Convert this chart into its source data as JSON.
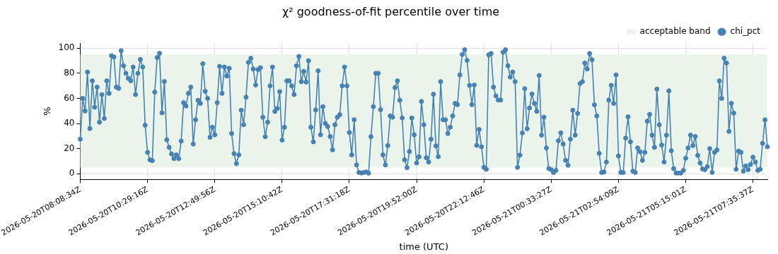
{
  "chart_data": {
    "type": "line",
    "title": "χ² goodness-of-fit percentile over time",
    "xlabel": "time (UTC)",
    "ylabel": "%",
    "categories": [
      "2026-05-20T08:08:34Z",
      null,
      null,
      null,
      null,
      null,
      null,
      null,
      null,
      null,
      null,
      null,
      null,
      null,
      null,
      null,
      null,
      null,
      null,
      null,
      null,
      null,
      null,
      null,
      null,
      null,
      null,
      null,
      "2026-05-20T10:29:16Z",
      null,
      null,
      null,
      null,
      null,
      null,
      null,
      null,
      null,
      null,
      null,
      null,
      null,
      null,
      null,
      null,
      null,
      null,
      null,
      null,
      null,
      null,
      null,
      null,
      null,
      null,
      null,
      "2026-05-20T12:49:56Z",
      null,
      null,
      null,
      null,
      null,
      null,
      null,
      null,
      null,
      null,
      null,
      null,
      null,
      null,
      null,
      null,
      null,
      null,
      null,
      null,
      null,
      null,
      null,
      null,
      null,
      null,
      null,
      "2026-05-20T15:10:42Z",
      null,
      null,
      null,
      null,
      null,
      null,
      null,
      null,
      null,
      null,
      null,
      null,
      null,
      null,
      null,
      null,
      null,
      null,
      null,
      null,
      null,
      null,
      null,
      null,
      null,
      null,
      null,
      "2026-05-20T17:31:18Z",
      null,
      null,
      null,
      null,
      null,
      null,
      null,
      null,
      null,
      null,
      null,
      null,
      null,
      null,
      null,
      null,
      null,
      null,
      null,
      null,
      null,
      null,
      null,
      null,
      null,
      null,
      null,
      "2026-05-20T19:52:00Z",
      null,
      null,
      null,
      null,
      null,
      null,
      null,
      null,
      null,
      null,
      null,
      null,
      null,
      null,
      null,
      null,
      null,
      null,
      null,
      null,
      null,
      null,
      null,
      null,
      null,
      null,
      null,
      "2026-05-20T22:12:46Z",
      null,
      null,
      null,
      null,
      null,
      null,
      null,
      null,
      null,
      null,
      null,
      null,
      null,
      null,
      null,
      null,
      null,
      null,
      null,
      null,
      null,
      null,
      null,
      null,
      null,
      null,
      null,
      "2026-05-21T00:33:27Z",
      null,
      null,
      null,
      null,
      null,
      null,
      null,
      null,
      null,
      null,
      null,
      null,
      null,
      null,
      null,
      null,
      null,
      null,
      null,
      null,
      null,
      null,
      null,
      null,
      null,
      null,
      null,
      "2026-05-21T02:54:09Z",
      null,
      null,
      null,
      null,
      null,
      null,
      null,
      null,
      null,
      null,
      null,
      null,
      null,
      null,
      null,
      null,
      null,
      null,
      null,
      null,
      null,
      null,
      null,
      null,
      null,
      null,
      null,
      "2026-05-21T05:15:01Z",
      null,
      null,
      null,
      null,
      null,
      null,
      null,
      null,
      null,
      null,
      null,
      null,
      null,
      null,
      null,
      null,
      null,
      null,
      null,
      null,
      null,
      null,
      null,
      null,
      null,
      null,
      null,
      "2026-05-21T07:35:37Z",
      null,
      null,
      null,
      null,
      null,
      null
    ],
    "series": [
      {
        "name": "chi_pct",
        "color": "#4682b4",
        "values": [
          27.5,
          60,
          50,
          81,
          36,
          74,
          53,
          69,
          41,
          63,
          44,
          74,
          64,
          94,
          93,
          69,
          68,
          98,
          86,
          80,
          76,
          74,
          85,
          63,
          80,
          91,
          85,
          38.6,
          17,
          11,
          10.4,
          65,
          92.6,
          96,
          48.5,
          73.5,
          27,
          21,
          15.7,
          12,
          15,
          12,
          26,
          56.6,
          54,
          64,
          69,
          23.6,
          43,
          58.5,
          56,
          87.6,
          65.6,
          60,
          29,
          37,
          31,
          56.6,
          85.5,
          64,
          85,
          77.8,
          84,
          32,
          16,
          8,
          15,
          50.6,
          39,
          61,
          88.7,
          92,
          83.4,
          70.7,
          83,
          84.5,
          45,
          29.5,
          41,
          70,
          85,
          49.6,
          52,
          65.4,
          26.8,
          37,
          74,
          74,
          70,
          63,
          86,
          93.5,
          73.4,
          81.5,
          73,
          90,
          37,
          25.4,
          50.8,
          82,
          31,
          53.4,
          40,
          37.6,
          29.6,
          19,
          39,
          45,
          47,
          70,
          85,
          70,
          32.8,
          15,
          43,
          7,
          1,
          0.5,
          1,
          1.4,
          0.4,
          29.5,
          53.4,
          80,
          80,
          51,
          15,
          7,
          22.4,
          46,
          45,
          68.6,
          74,
          58.5,
          44.4,
          11,
          4.8,
          17.6,
          44.4,
          31,
          8.5,
          13.5,
          57.6,
          39,
          12.7,
          9.3,
          27.5,
          63.3,
          22.2,
          13.6,
          73.4,
          43,
          43,
          32,
          37,
          46,
          56,
          55,
          78.7,
          95,
          98.8,
          90.3,
          70.4,
          55,
          70.7,
          22.6,
          35.3,
          21.5,
          5,
          3.5,
          94.7,
          95.8,
          69,
          62,
          58.7,
          58.7,
          96.8,
          98.8,
          86,
          77,
          81,
          73.4,
          5,
          14.8,
          32.4,
          67.7,
          35.8,
          52.4,
          63.5,
          56,
          49.7,
          78.3,
          30.7,
          45,
          20.5,
          4.2,
          3.2,
          0.9,
          2.6,
          26.3,
          32.5,
          23.6,
          10.6,
          6.7,
          27.5,
          50.6,
          30.7,
          48,
          71.8,
          73.4,
          88.2,
          83.4,
          95.8,
          90.8,
          54.9,
          46,
          16.2,
          0.9,
          1.4,
          9.3,
          58.6,
          70.4,
          56,
          78.7,
          14.1,
          1,
          1,
          28.4,
          45.3,
          25.4,
          2,
          1,
          20.5,
          17.5,
          10.6,
          17,
          41.8,
          47.3,
          30.7,
          21,
          67.4,
          39,
          22.8,
          9.3,
          30.7,
          66,
          18.3,
          4,
          0.5,
          0.5,
          0.5,
          2.6,
          12.3,
          20.5,
          30.7,
          22.4,
          29.6,
          14.6,
          8.5,
          3.7,
          3.2,
          5.6,
          20,
          1,
          17,
          18.9,
          73.9,
          60,
          92,
          88.2,
          33.7,
          56,
          48.3,
          3.5,
          18,
          17,
          2,
          6.2,
          3.2,
          7.4,
          13.2,
          9.3,
          2.6,
          3.5,
          24.2,
          42.9,
          21.5
        ]
      }
    ],
    "bands": [
      {
        "axis": "y",
        "from": 5,
        "to": 95,
        "label": "acceptable band",
        "color": "#eaf4ea"
      }
    ],
    "ylim": [
      -4.5,
      104
    ],
    "yticks": [
      0,
      20,
      40,
      60,
      80,
      100
    ],
    "grid": true,
    "legend": "top right",
    "marker": "circle",
    "line_style": "solid"
  }
}
